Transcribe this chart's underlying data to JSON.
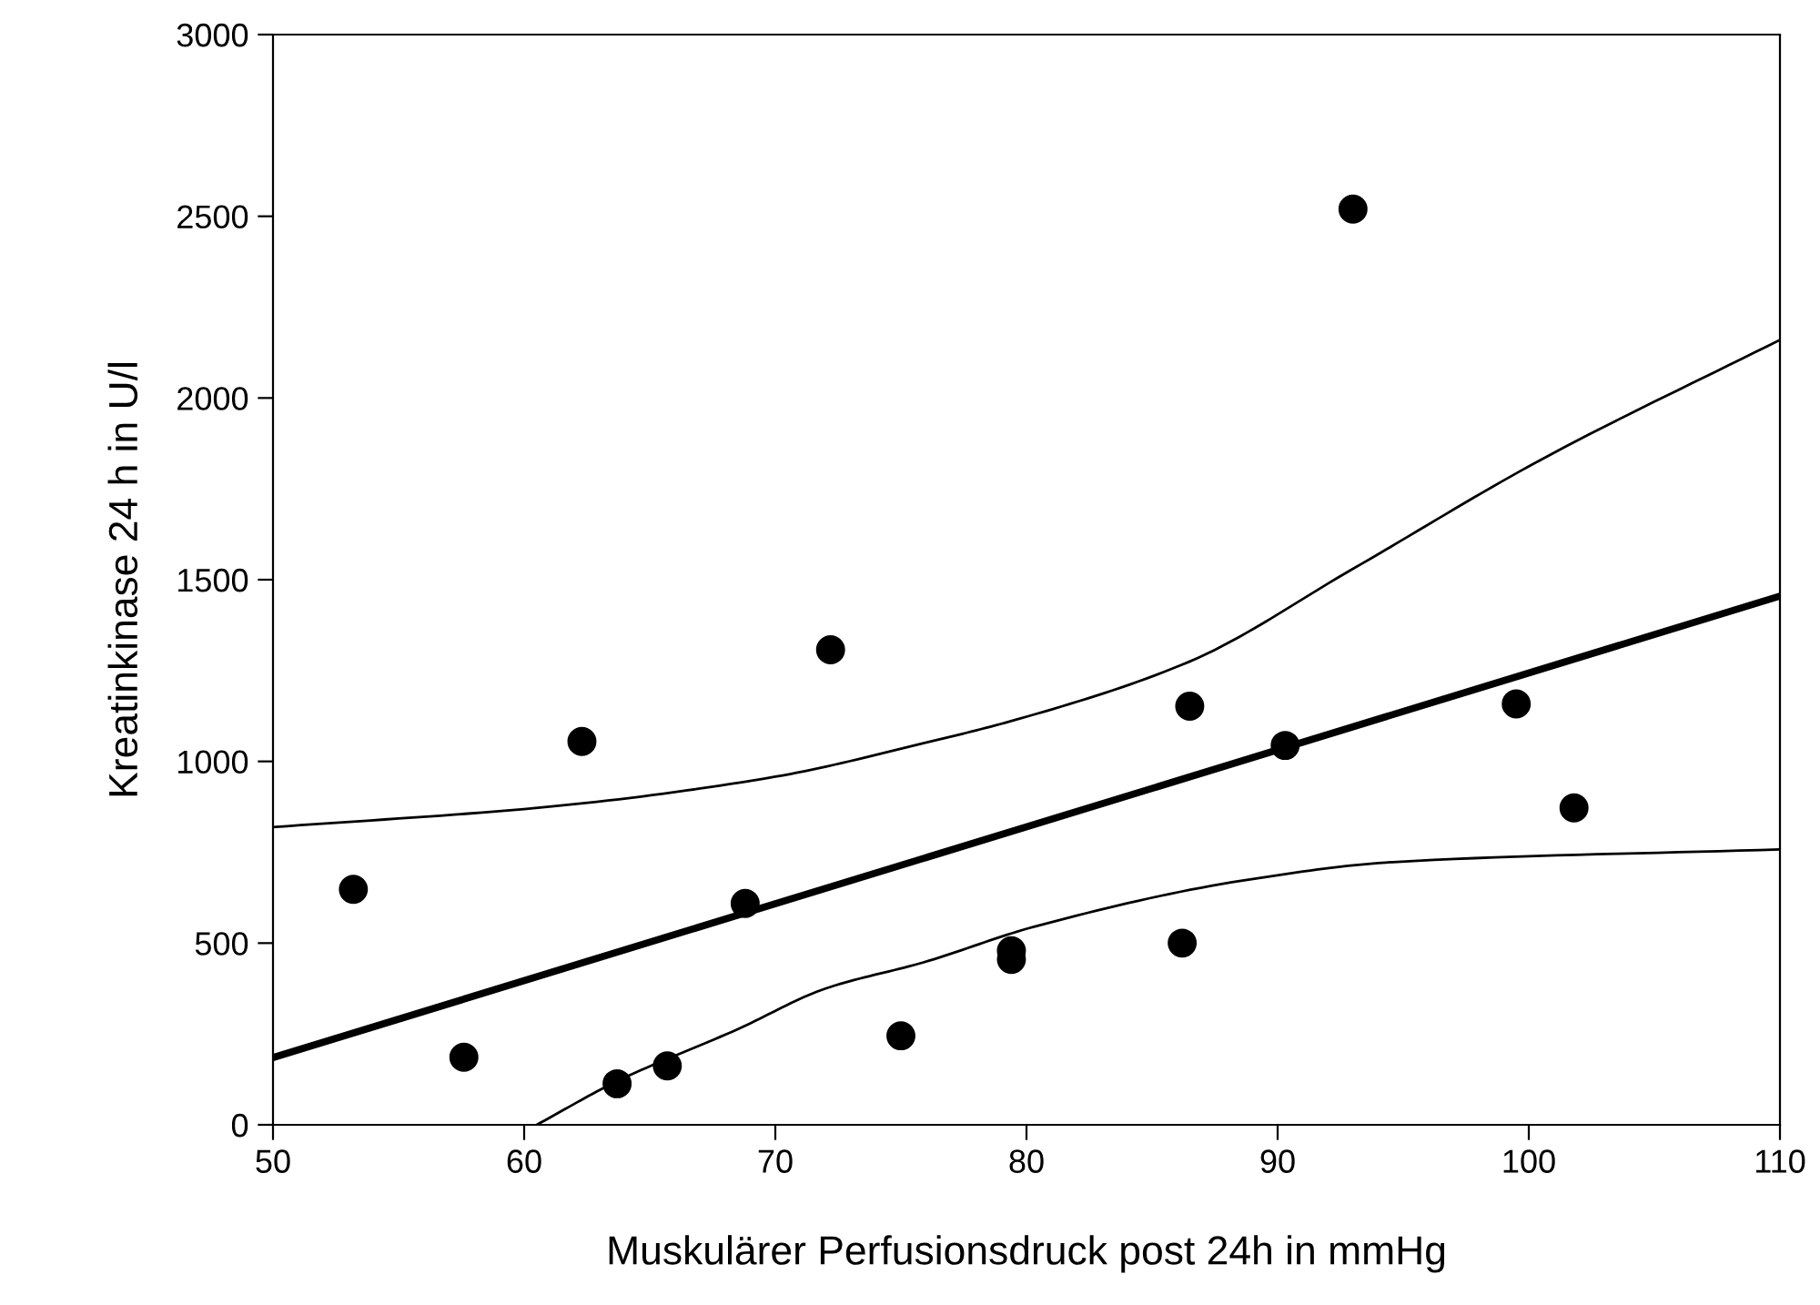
{
  "chart_data": {
    "type": "scatter",
    "xlabel": "Muskulärer Perfusionsdruck post 24h in mmHg",
    "ylabel": "Kreatinkinase 24 h in U/l",
    "x": [
      53.2,
      57.6,
      62.3,
      63.7,
      65.7,
      68.8,
      72.2,
      75.0,
      79.4,
      79.4,
      86.2,
      86.5,
      90.3,
      93.0,
      99.5,
      101.8
    ],
    "series": [
      {
        "color": "#000000",
        "marker": "circle",
        "values": [
          648,
          186,
          1055,
          113,
          162,
          609,
          1307,
          245,
          479,
          455,
          500,
          1152,
          1044,
          2520,
          1158,
          872
        ]
      },
      {
        "type": "line",
        "color": "#000000",
        "x": [
          50,
          110
        ],
        "values": [
          185,
          1455
        ]
      },
      {
        "type": "line",
        "color": "#000000",
        "x": [
          50,
          61.1,
          70.0,
          75.9,
          79.7,
          86.5,
          93.0,
          100.4,
          110
        ],
        "values": [
          819,
          876,
          958,
          1050,
          1117,
          1275,
          1530,
          1827,
          2160
        ]
      },
      {
        "type": "line",
        "color": "#000000",
        "x": [
          60.5,
          63.7,
          68.5,
          72.0,
          75.9,
          80.3,
          88.6,
          94.6,
          110
        ],
        "values": [
          0,
          120,
          263,
          375,
          447,
          545,
          672,
          723,
          758
        ]
      }
    ],
    "xlim": [
      50,
      110
    ],
    "xticks": [
      50,
      60,
      70,
      80,
      90,
      100,
      110
    ],
    "ylim": [
      0,
      3000
    ],
    "yticks": [
      0,
      500,
      1000,
      1500,
      2000,
      2500,
      3000
    ],
    "grid": false,
    "legend": false
  }
}
